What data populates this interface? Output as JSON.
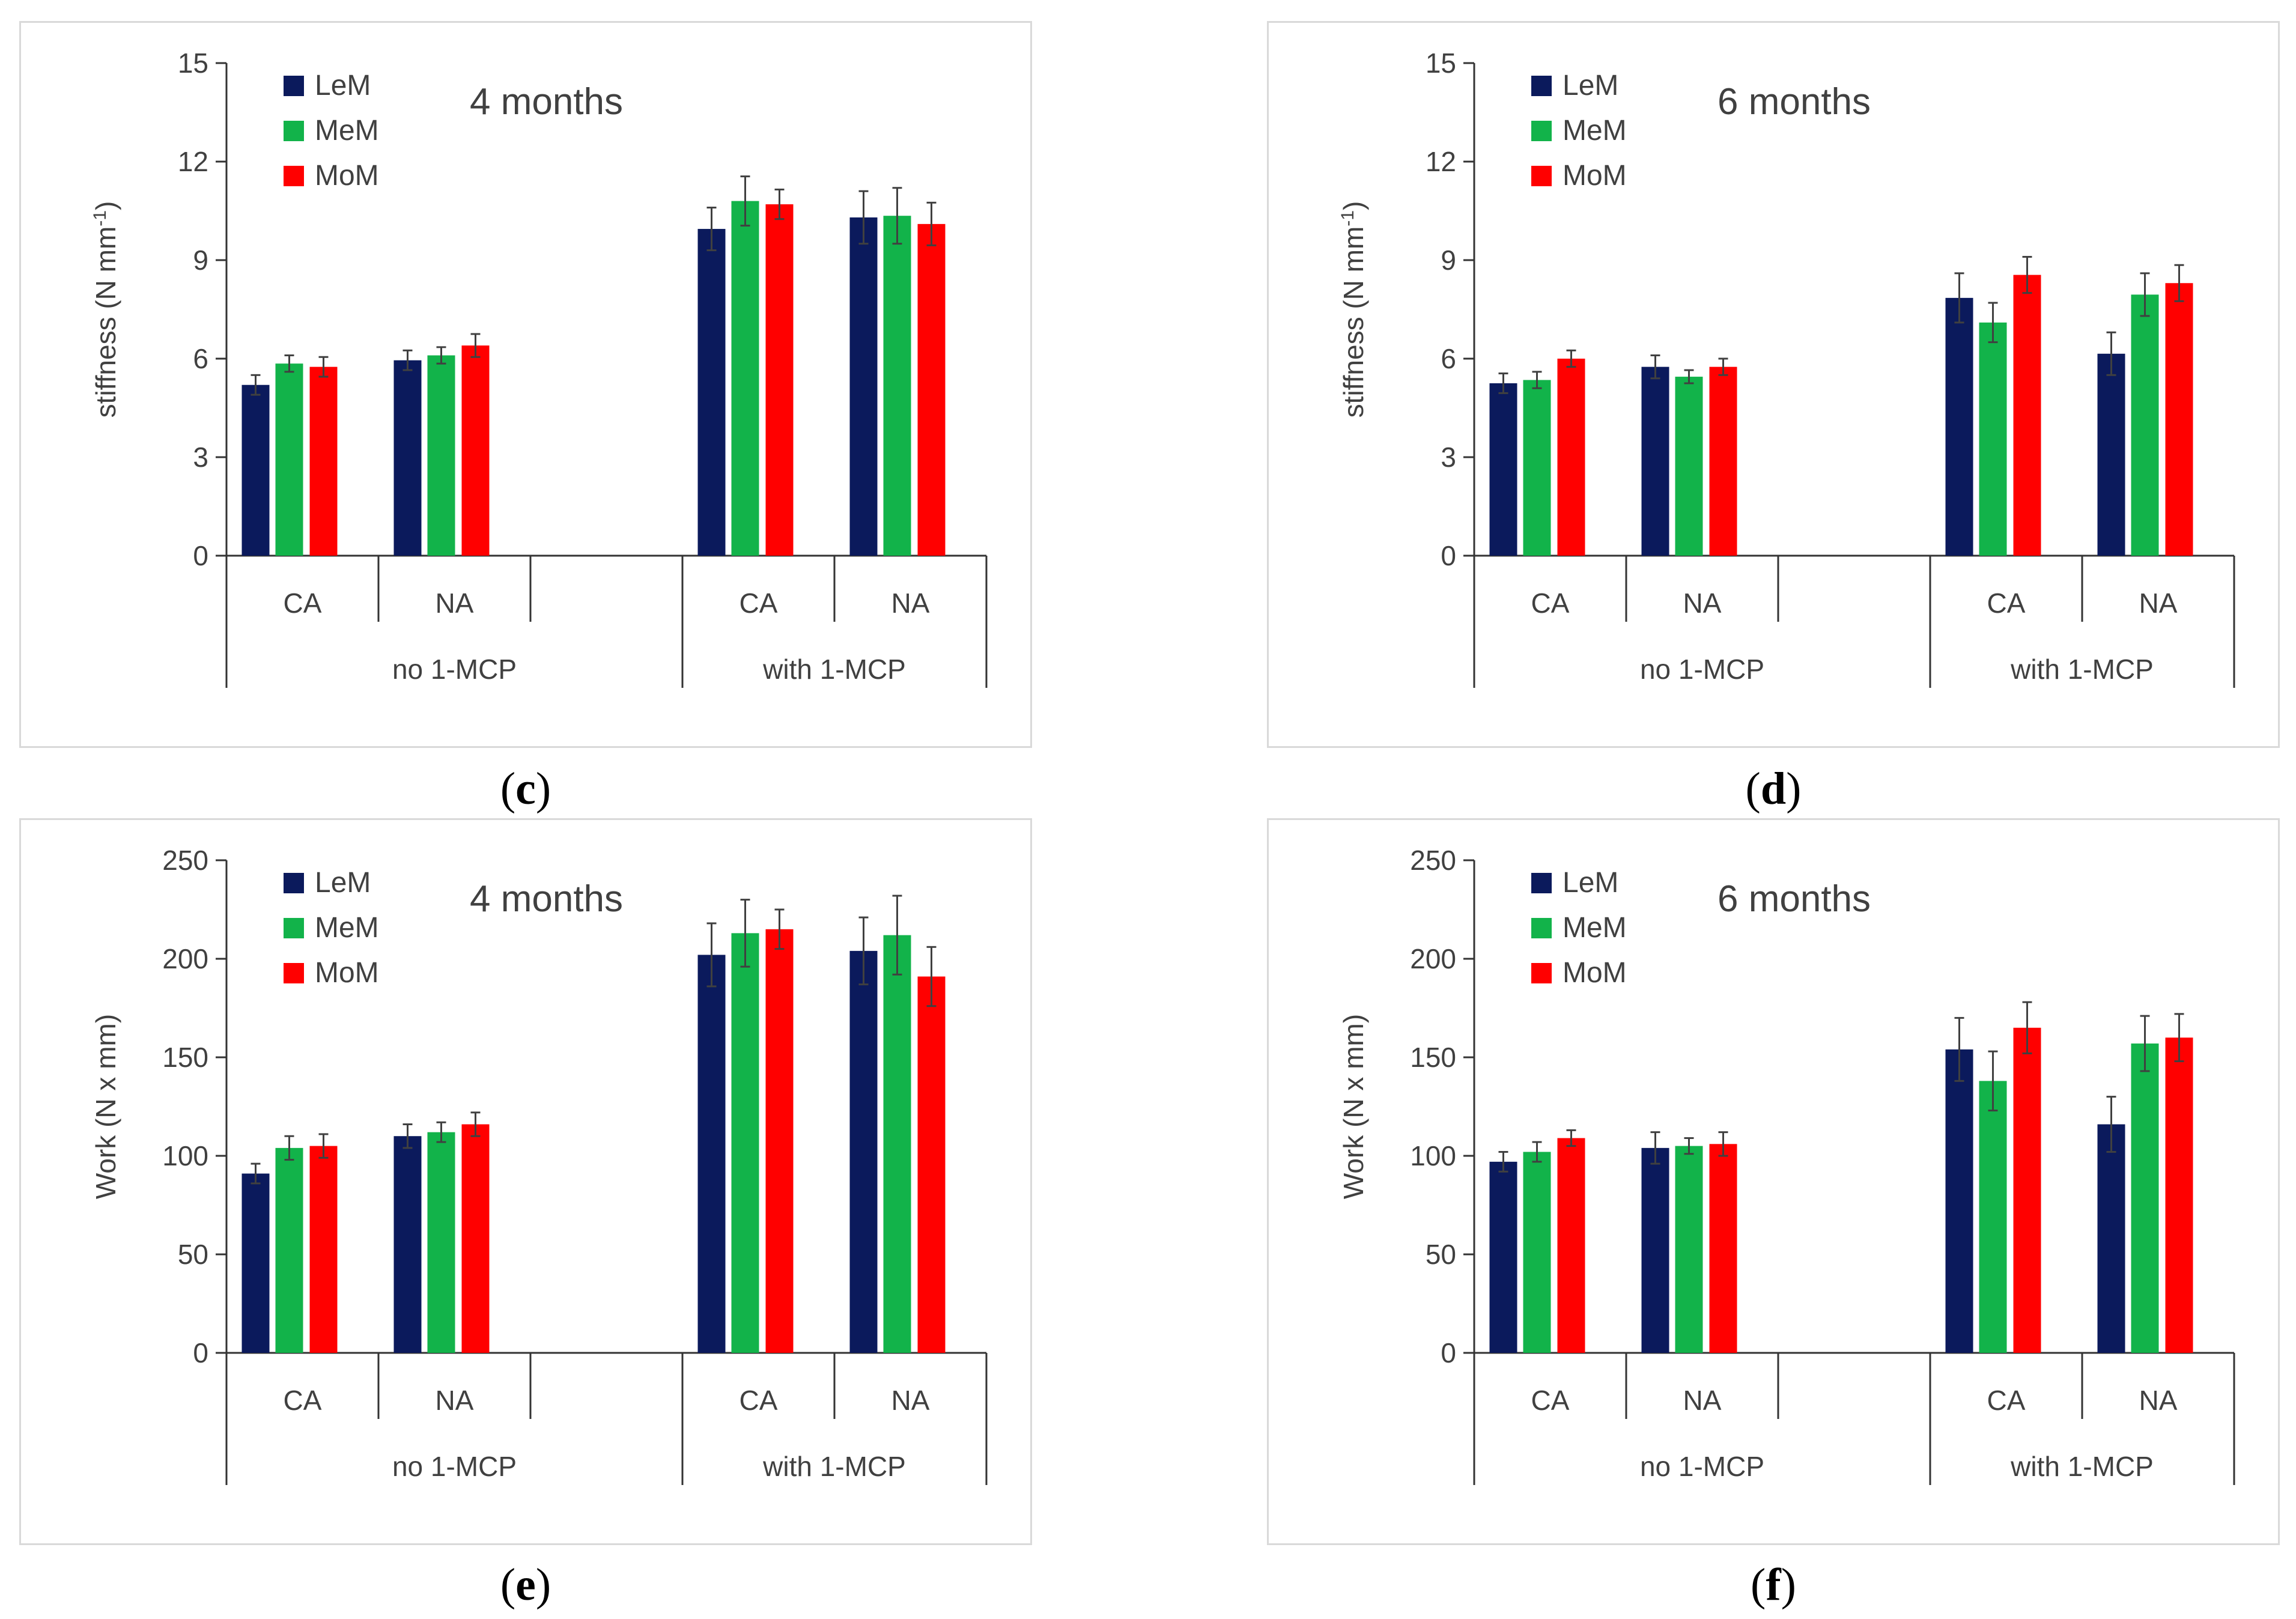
{
  "colors": {
    "LeM": "#0b1a5c",
    "MeM": "#12b34a",
    "MoM": "#ff0000",
    "axis": "#333333",
    "tick_text": "#404040",
    "error": "#404040"
  },
  "chart_data": [
    {
      "id": "c",
      "panel_label": "c",
      "type": "bar",
      "title": "4 months",
      "ylabel": "stiffness (N mm",
      "ylabel_sup": "-1",
      "ylabel_end": ")",
      "ylim": [
        0,
        15
      ],
      "yticks": [
        0,
        3,
        6,
        9,
        12,
        15
      ],
      "categories": [
        "CA",
        "NA",
        "",
        "CA",
        "NA"
      ],
      "groups": [
        {
          "label": "no 1-MCP",
          "span": [
            0,
            3
          ]
        },
        {
          "label": "with 1-MCP",
          "span": [
            3,
            5
          ]
        }
      ],
      "legend_position": "top-left",
      "series": [
        {
          "name": "LeM",
          "values": [
            5.2,
            5.95,
            null,
            9.95,
            10.3
          ],
          "errors": [
            0.3,
            0.3,
            null,
            0.65,
            0.8
          ]
        },
        {
          "name": "MeM",
          "values": [
            5.85,
            6.1,
            null,
            10.8,
            10.35
          ],
          "errors": [
            0.25,
            0.25,
            null,
            0.75,
            0.85
          ]
        },
        {
          "name": "MoM",
          "values": [
            5.75,
            6.4,
            null,
            10.7,
            10.1
          ],
          "errors": [
            0.3,
            0.35,
            null,
            0.45,
            0.65
          ]
        }
      ]
    },
    {
      "id": "d",
      "panel_label": "d",
      "type": "bar",
      "title": "6 months",
      "ylabel": "stiffness (N mm",
      "ylabel_sup": "-1",
      "ylabel_end": ")",
      "ylim": [
        0,
        15
      ],
      "yticks": [
        0,
        3,
        6,
        9,
        12,
        15
      ],
      "categories": [
        "CA",
        "NA",
        "",
        "CA",
        "NA"
      ],
      "groups": [
        {
          "label": "no 1-MCP",
          "span": [
            0,
            3
          ]
        },
        {
          "label": "with 1-MCP",
          "span": [
            3,
            5
          ]
        }
      ],
      "legend_position": "top-left",
      "series": [
        {
          "name": "LeM",
          "values": [
            5.25,
            5.75,
            null,
            7.85,
            6.15
          ],
          "errors": [
            0.3,
            0.35,
            null,
            0.75,
            0.65
          ]
        },
        {
          "name": "MeM",
          "values": [
            5.35,
            5.45,
            null,
            7.1,
            7.95
          ],
          "errors": [
            0.25,
            0.2,
            null,
            0.6,
            0.65
          ]
        },
        {
          "name": "MoM",
          "values": [
            6.0,
            5.75,
            null,
            8.55,
            8.3
          ],
          "errors": [
            0.25,
            0.25,
            null,
            0.55,
            0.55
          ]
        }
      ]
    },
    {
      "id": "e",
      "panel_label": "e",
      "type": "bar",
      "title": "4 months",
      "ylabel": "Work (N x mm)",
      "ylabel_sup": "",
      "ylabel_end": "",
      "ylim": [
        0,
        250
      ],
      "yticks": [
        0,
        50,
        100,
        150,
        200,
        250
      ],
      "categories": [
        "CA",
        "NA",
        "",
        "CA",
        "NA"
      ],
      "groups": [
        {
          "label": "no 1-MCP",
          "span": [
            0,
            3
          ]
        },
        {
          "label": "with 1-MCP",
          "span": [
            3,
            5
          ]
        }
      ],
      "legend_position": "top-left",
      "series": [
        {
          "name": "LeM",
          "values": [
            91,
            110,
            null,
            202,
            204
          ],
          "errors": [
            5,
            6,
            null,
            16,
            17
          ]
        },
        {
          "name": "MeM",
          "values": [
            104,
            112,
            null,
            213,
            212
          ],
          "errors": [
            6,
            5,
            null,
            17,
            20
          ]
        },
        {
          "name": "MoM",
          "values": [
            105,
            116,
            null,
            215,
            191
          ],
          "errors": [
            6,
            6,
            null,
            10,
            15
          ]
        }
      ]
    },
    {
      "id": "f",
      "panel_label": "f",
      "type": "bar",
      "title": "6 months",
      "ylabel": "Work (N x mm)",
      "ylabel_sup": "",
      "ylabel_end": "",
      "ylim": [
        0,
        250
      ],
      "yticks": [
        0,
        50,
        100,
        150,
        200,
        250
      ],
      "categories": [
        "CA",
        "NA",
        "",
        "CA",
        "NA"
      ],
      "groups": [
        {
          "label": "no 1-MCP",
          "span": [
            0,
            3
          ]
        },
        {
          "label": "with 1-MCP",
          "span": [
            3,
            5
          ]
        }
      ],
      "legend_position": "top-left",
      "series": [
        {
          "name": "LeM",
          "values": [
            97,
            104,
            null,
            154,
            116
          ],
          "errors": [
            5,
            8,
            null,
            16,
            14
          ]
        },
        {
          "name": "MeM",
          "values": [
            102,
            105,
            null,
            138,
            157
          ],
          "errors": [
            5,
            4,
            null,
            15,
            14
          ]
        },
        {
          "name": "MoM",
          "values": [
            109,
            106,
            null,
            165,
            160
          ],
          "errors": [
            4,
            6,
            null,
            13,
            12
          ]
        }
      ]
    }
  ]
}
